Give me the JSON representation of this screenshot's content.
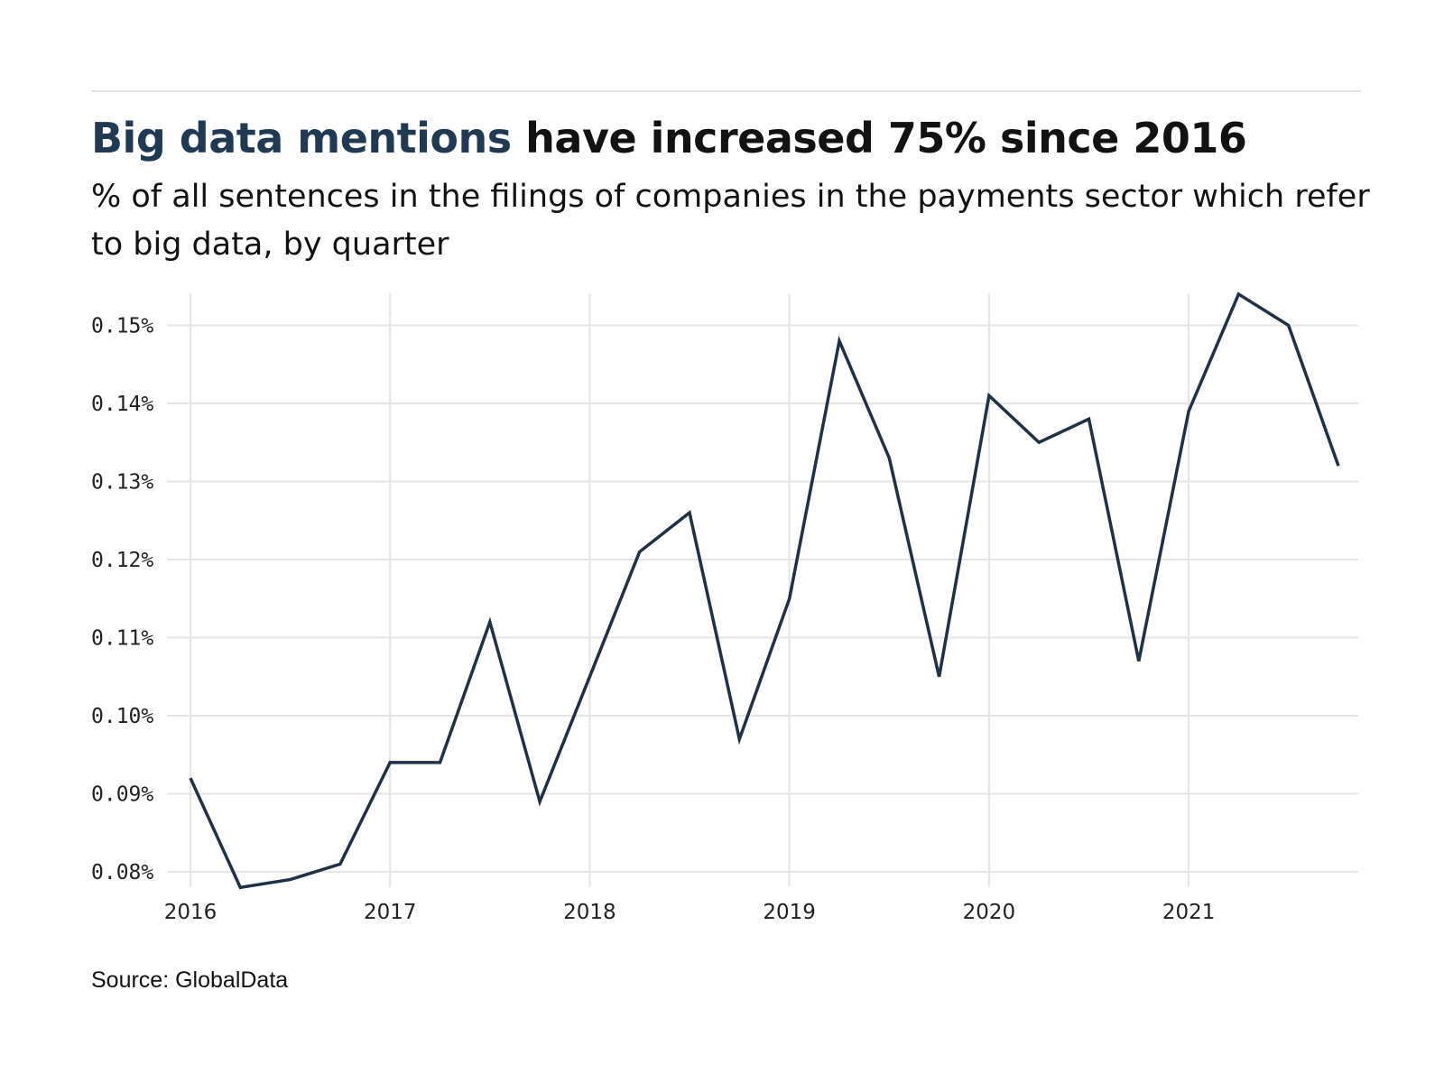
{
  "header": {
    "title_highlight": "Big data mentions",
    "title_rest": " have increased 75% since 2016",
    "subtitle": "% of all sentences in the filings of companies in the payments sector which refer to big data, by quarter"
  },
  "source": "Source: GlobalData",
  "colors": {
    "line": "#1f3145",
    "highlight": "#1f3a52",
    "grid": "#e5e5e5"
  },
  "chart_data": {
    "type": "line",
    "title": "Big data mentions have increased 75% since 2016",
    "xlabel": "",
    "ylabel": "",
    "x": [
      "2016 Q1",
      "2016 Q2",
      "2016 Q3",
      "2016 Q4",
      "2017 Q1",
      "2017 Q2",
      "2017 Q3",
      "2017 Q4",
      "2018 Q1",
      "2018 Q2",
      "2018 Q3",
      "2018 Q4",
      "2019 Q1",
      "2019 Q2",
      "2019 Q3",
      "2019 Q4",
      "2020 Q1",
      "2020 Q2",
      "2020 Q3",
      "2020 Q4",
      "2021 Q1",
      "2021 Q2",
      "2021 Q3",
      "2021 Q4"
    ],
    "series": [
      {
        "values": [
          0.092,
          0.078,
          0.079,
          0.081,
          0.094,
          0.094,
          0.112,
          0.089,
          0.105,
          0.121,
          0.126,
          0.097,
          0.115,
          0.148,
          0.133,
          0.105,
          0.141,
          0.135,
          0.138,
          0.107,
          0.139,
          0.154,
          0.15,
          0.132
        ]
      }
    ],
    "x_tick_labels": [
      "2016",
      "2017",
      "2018",
      "2019",
      "2020",
      "2021"
    ],
    "y_tick_values": [
      0.08,
      0.09,
      0.1,
      0.11,
      0.12,
      0.13,
      0.14,
      0.15
    ],
    "y_tick_labels": [
      "0.08%",
      "0.09%",
      "0.10%",
      "0.11%",
      "0.12%",
      "0.13%",
      "0.14%",
      "0.15%"
    ],
    "ylim": [
      0.078,
      0.154
    ],
    "grid": true,
    "legend": "none"
  }
}
